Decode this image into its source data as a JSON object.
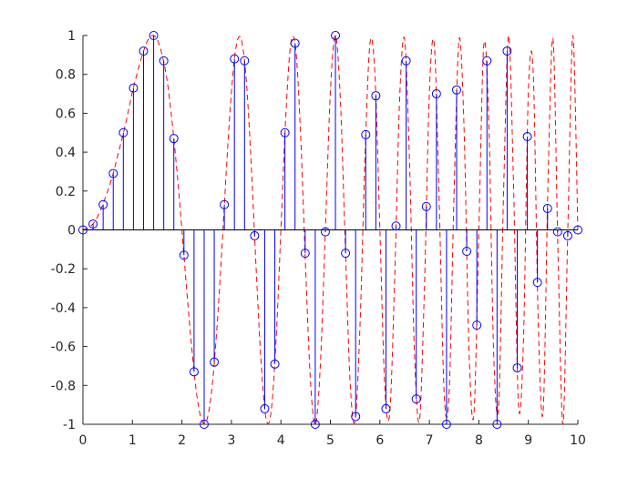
{
  "chart_data": {
    "type": "stem",
    "xlim": [
      0,
      10
    ],
    "ylim": [
      -1,
      1
    ],
    "xticks": [
      0,
      1,
      2,
      3,
      4,
      5,
      6,
      7,
      8,
      9,
      10
    ],
    "yticks": [
      -1,
      -0.8,
      -0.6,
      -0.4,
      -0.2,
      0,
      0.2,
      0.4,
      0.6,
      0.8,
      1
    ],
    "series": [
      {
        "type": "line",
        "style": "dashed",
        "color": "#ff0000",
        "x": [
          0,
          0.1,
          0.2,
          0.3,
          0.4,
          0.5,
          0.6,
          0.7,
          0.8,
          0.9,
          1,
          1.1,
          1.2,
          1.3,
          1.4,
          1.5,
          1.6,
          1.7,
          1.8,
          1.9,
          2,
          2.1,
          2.2,
          2.3,
          2.4,
          2.5,
          2.6,
          2.7,
          2.8,
          2.9,
          3,
          3.1,
          3.2,
          3.3,
          3.4,
          3.5,
          3.6,
          3.7,
          3.8,
          3.9,
          4,
          4.1,
          4.2,
          4.3,
          4.4,
          4.5,
          4.6,
          4.7,
          4.8,
          4.9,
          5,
          5.1,
          5.2,
          5.3,
          5.4,
          5.5,
          5.6,
          5.7,
          5.8,
          5.9,
          6,
          6.1,
          6.2,
          6.3,
          6.4,
          6.5,
          6.6,
          6.7,
          6.8,
          6.9,
          7,
          7.1,
          7.2,
          7.3,
          7.4,
          7.5,
          7.6,
          7.7,
          7.8,
          7.9,
          8,
          8.1,
          8.2,
          8.3,
          8.4,
          8.5,
          8.6,
          8.7,
          8.8,
          8.9,
          9,
          9.1,
          9.2,
          9.3,
          9.4,
          9.5,
          9.6,
          9.7,
          9.8,
          9.9,
          10
        ],
        "values": [
          0,
          0.01,
          0.03,
          0.07,
          0.13,
          0.2,
          0.28,
          0.38,
          0.48,
          0.59,
          0.71,
          0.81,
          0.9,
          0.97,
          1,
          0.98,
          0.9,
          0.77,
          0.56,
          0.3,
          0,
          -0.32,
          -0.61,
          -0.85,
          -0.98,
          -0.98,
          -0.83,
          -0.53,
          -0.13,
          0.32,
          0.71,
          0.95,
          0.98,
          0.77,
          0.34,
          -0.2,
          -0.68,
          -0.97,
          -0.94,
          -0.58,
          0,
          0.59,
          0.96,
          0.93,
          0.48,
          -0.2,
          -0.79,
          -1,
          -0.68,
          0.01,
          0.71,
          1,
          0.68,
          -0.07,
          -0.79,
          -0.98,
          -0.48,
          0.38,
          0.96,
          0.8,
          0,
          -0.81,
          -0.94,
          -0.24,
          0.68,
          0.98,
          0.34,
          -0.64,
          -0.98,
          -0.3,
          0.71,
          0.95,
          0.13,
          -0.85,
          -0.83,
          0.2,
          0.98,
          0.53,
          -0.61,
          -0.95,
          0,
          0.95,
          0.56,
          -0.64,
          -0.9,
          0.2,
          1,
          0.24,
          -0.9,
          -0.58,
          0.71,
          0.8,
          -0.48,
          -0.93,
          0.28,
          0.98,
          -0.13,
          -1,
          0.03,
          1,
          0
        ]
      },
      {
        "type": "stem",
        "color": "#0000ff",
        "x": [
          0,
          0.2041,
          0.4082,
          0.6122,
          0.8163,
          1.0204,
          1.2245,
          1.4286,
          1.6327,
          1.8367,
          2.0408,
          2.2449,
          2.449,
          2.6531,
          2.8571,
          3.0612,
          3.2653,
          3.4694,
          3.6735,
          3.8776,
          4.0816,
          4.2857,
          4.4898,
          4.6939,
          4.898,
          5.102,
          5.3061,
          5.5102,
          5.7143,
          5.9184,
          6.1224,
          6.3265,
          6.5306,
          6.7347,
          6.9388,
          7.1429,
          7.3469,
          7.551,
          7.7551,
          7.9592,
          8.1633,
          8.3673,
          8.5714,
          8.7755,
          8.9796,
          9.1837,
          9.3878,
          9.5918,
          9.7959,
          10
        ],
        "values": [
          0,
          0.03,
          0.13,
          0.29,
          0.5,
          0.73,
          0.92,
          1,
          0.87,
          0.47,
          -0.13,
          -0.73,
          -1,
          -0.68,
          0.13,
          0.88,
          0.87,
          -0.03,
          -0.92,
          -0.69,
          0.5,
          0.96,
          -0.12,
          -1,
          -0.01,
          1,
          -0.12,
          -0.96,
          0.49,
          0.69,
          -0.92,
          0.02,
          0.87,
          -0.87,
          0.12,
          0.7,
          -1,
          0.72,
          -0.11,
          -0.49,
          0.87,
          -1,
          0.92,
          -0.71,
          0.48,
          -0.27,
          0.11,
          -0.01,
          -0.03,
          0
        ]
      }
    ]
  }
}
